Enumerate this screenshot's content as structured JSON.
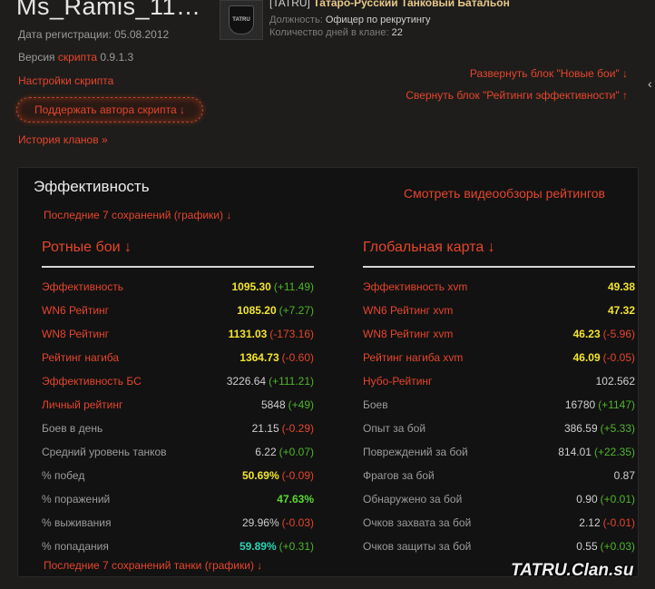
{
  "profile": {
    "username": "Ms_Ramis_11…",
    "reg_label": "Дата регистрации:",
    "reg_date": "05.08.2012",
    "version_prefix": "Версия",
    "version_link": "скрипта",
    "version_number": "0.9.1.3",
    "settings_link": "Настройки скрипта",
    "support_button": "Поддержать автора скрипта ↓",
    "history_link": "История кланов »"
  },
  "clan": {
    "logo_text": "TATRU",
    "tag": "[TATRU]",
    "name": "Татаро-Русский Танковый Батальон",
    "position_label": "Должность:",
    "position_value": "Офицер по рекрутингу",
    "days_label": "Количество дней в клане:",
    "days_value": "22"
  },
  "toggles": {
    "expand_new_battles": "Развернуть блок \"Новые бои\" ↓",
    "collapse_ratings": "Свернуть блок \"Рейтинги эффективности\" ↑"
  },
  "efficiency": {
    "title": "Эффективность",
    "video_link": "Смотреть видеообзоры рейтингов",
    "last7_link": "Последние 7 сохранений (графики) ↓",
    "last7_tanks_link": "Последние 7 сохранений танки (графики) ↓",
    "company": {
      "title": "Ротные бои ↓",
      "rows": [
        {
          "label": "Эффективность",
          "value": "1095.30",
          "delta": "(+11.49)"
        },
        {
          "label": "WN6 Рейтинг",
          "value": "1085.20",
          "delta": "(+7.27)"
        },
        {
          "label": "WN8 Рейтинг",
          "value": "1131.03",
          "delta": "(-173.16)"
        },
        {
          "label": "Рейтинг нагиба",
          "value": "1364.73",
          "delta": "(-0.60)"
        },
        {
          "label": "Эффективность БС",
          "value": "3226.64",
          "delta": "(+111.21)"
        },
        {
          "label": "Личный рейтинг",
          "value": "5848",
          "delta": "(+49)"
        },
        {
          "label": "Боев в день",
          "value": "21.15",
          "delta": "(-0.29)"
        },
        {
          "label": "Средний уровень танков",
          "value": "6.22",
          "delta": "(+0.07)"
        },
        {
          "label": "% побед",
          "value": "50.69%",
          "delta": "(-0.09)"
        },
        {
          "label": "% поражений",
          "value": "47.63%",
          "delta": ""
        },
        {
          "label": "% выживания",
          "value": "29.96%",
          "delta": "(-0.03)"
        },
        {
          "label": "% попадания",
          "value": "59.89%",
          "delta": "(+0.31)"
        }
      ]
    },
    "global_map": {
      "title": "Глобальная карта ↓",
      "rows": [
        {
          "label": "Эффективность xvm",
          "value": "49.38",
          "delta": ""
        },
        {
          "label": "WN6 Рейтинг xvm",
          "value": "47.32",
          "delta": ""
        },
        {
          "label": "WN8 Рейтинг xvm",
          "value": "46.23",
          "delta": "(-5.96)"
        },
        {
          "label": "Рейтинг нагиба xvm",
          "value": "46.09",
          "delta": "(-0.05)"
        },
        {
          "label": "Нубо-Рейтинг",
          "value": "102.562",
          "delta": ""
        },
        {
          "label": "Боев",
          "value": "16780",
          "delta": "(+1147)"
        },
        {
          "label": "Опыт за бой",
          "value": "386.59",
          "delta": "(+5.33)"
        },
        {
          "label": "Повреждений за бой",
          "value": "814.01",
          "delta": "(+22.35)"
        },
        {
          "label": "Фрагов за бой",
          "value": "0.87",
          "delta": ""
        },
        {
          "label": "Обнаружено за бой",
          "value": "0.90",
          "delta": "(+0.01)"
        },
        {
          "label": "Очков захвата за бой",
          "value": "2.12",
          "delta": "(-0.01)"
        },
        {
          "label": "Очков защиты за бой",
          "value": "0.55",
          "delta": "(+0.03)"
        }
      ]
    }
  },
  "watermark": "TATRU.Clan.su",
  "colors": {
    "accent_red": "#e5452c",
    "value_yellow": "#f2e52c",
    "value_green": "#59d82e",
    "value_cyan": "#2bd3b5",
    "delta_up": "#4fb52a"
  }
}
